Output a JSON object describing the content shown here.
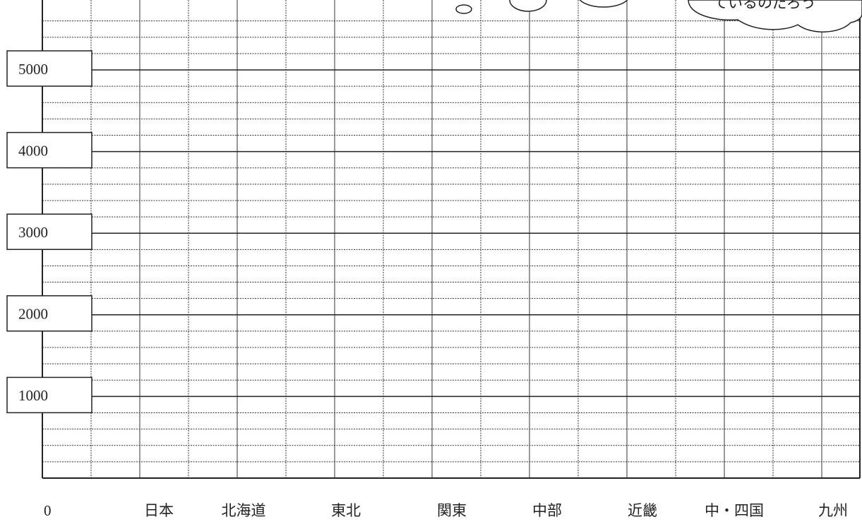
{
  "y_axis_labels": [
    "5000",
    "4000",
    "3000",
    "2000",
    "1000"
  ],
  "origin_label": "0",
  "x_labels": [
    "日本",
    "北海道",
    "東北",
    "関東",
    "中部",
    "近畿",
    "中・四国",
    "九州"
  ],
  "bubble_text": "ているのだろう"
}
